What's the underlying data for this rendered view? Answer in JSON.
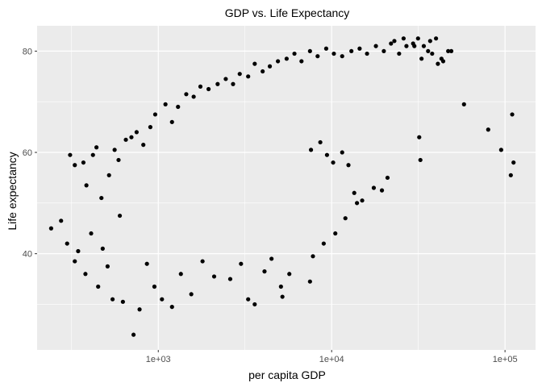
{
  "chart_data": {
    "type": "scatter",
    "title": "GDP vs. Life Expectancy",
    "xlabel": "per capita GDP",
    "ylabel": "Life expectancy",
    "x_scale": "log10",
    "xlim": [
      200,
      150000
    ],
    "ylim": [
      21,
      85
    ],
    "x_ticks": [
      1000,
      10000,
      100000
    ],
    "x_tick_labels": [
      "1e+03",
      "1e+04",
      "1e+05"
    ],
    "y_ticks": [
      40,
      60,
      80
    ],
    "y_tick_labels": [
      "40",
      "60",
      "80"
    ],
    "grid": true,
    "panel_background": "#ebebeb",
    "grid_color": "#ffffff",
    "point_color": "#000000",
    "points": [
      [
        241,
        45.0
      ],
      [
        275,
        46.5
      ],
      [
        298,
        42.0
      ],
      [
        330,
        38.5
      ],
      [
        345,
        40.5
      ],
      [
        380,
        36.0
      ],
      [
        410,
        44.0
      ],
      [
        450,
        33.5
      ],
      [
        478,
        41.0
      ],
      [
        510,
        37.5
      ],
      [
        545,
        31.0
      ],
      [
        600,
        47.5
      ],
      [
        625,
        30.5
      ],
      [
        720,
        24.0
      ],
      [
        780,
        29.0
      ],
      [
        860,
        38.0
      ],
      [
        950,
        33.5
      ],
      [
        1050,
        31.0
      ],
      [
        1200,
        29.5
      ],
      [
        1350,
        36.0
      ],
      [
        1550,
        32.0
      ],
      [
        1800,
        38.5
      ],
      [
        2100,
        35.5
      ],
      [
        2600,
        35.0
      ],
      [
        3000,
        38.0
      ],
      [
        3300,
        31.0
      ],
      [
        3600,
        30.0
      ],
      [
        4100,
        36.5
      ],
      [
        4500,
        39.0
      ],
      [
        5100,
        33.5
      ],
      [
        5700,
        36.0
      ],
      [
        7800,
        39.5
      ],
      [
        9000,
        42.0
      ],
      [
        10500,
        44.0
      ],
      [
        12000,
        47.0
      ],
      [
        7500,
        34.5
      ],
      [
        5200,
        31.5
      ],
      [
        310,
        59.5
      ],
      [
        330,
        57.5
      ],
      [
        370,
        58.0
      ],
      [
        385,
        53.5
      ],
      [
        420,
        59.5
      ],
      [
        440,
        61.0
      ],
      [
        470,
        51.0
      ],
      [
        520,
        55.5
      ],
      [
        560,
        60.5
      ],
      [
        590,
        58.5
      ],
      [
        650,
        62.5
      ],
      [
        700,
        63.0
      ],
      [
        750,
        64.0
      ],
      [
        820,
        61.5
      ],
      [
        900,
        65.0
      ],
      [
        960,
        67.5
      ],
      [
        1100,
        69.5
      ],
      [
        1200,
        66.0
      ],
      [
        1300,
        69.0
      ],
      [
        1450,
        71.5
      ],
      [
        1600,
        71.0
      ],
      [
        1750,
        73.0
      ],
      [
        1950,
        72.5
      ],
      [
        2200,
        73.5
      ],
      [
        2450,
        74.5
      ],
      [
        2700,
        73.5
      ],
      [
        2950,
        75.5
      ],
      [
        3300,
        75.0
      ],
      [
        3600,
        77.5
      ],
      [
        4000,
        76.0
      ],
      [
        4400,
        77.0
      ],
      [
        4900,
        78.0
      ],
      [
        5500,
        78.5
      ],
      [
        6100,
        79.5
      ],
      [
        6700,
        78.0
      ],
      [
        7500,
        80.0
      ],
      [
        8300,
        79.0
      ],
      [
        9300,
        80.5
      ],
      [
        10300,
        79.5
      ],
      [
        11500,
        79.0
      ],
      [
        13000,
        80.0
      ],
      [
        14500,
        80.5
      ],
      [
        16000,
        79.5
      ],
      [
        18000,
        81.0
      ],
      [
        20000,
        80.0
      ],
      [
        22000,
        81.5
      ],
      [
        24500,
        79.5
      ],
      [
        27000,
        81.0
      ],
      [
        29500,
        81.5
      ],
      [
        31500,
        82.5
      ],
      [
        34000,
        81.0
      ],
      [
        37000,
        82.0
      ],
      [
        40000,
        82.5
      ],
      [
        43000,
        78.5
      ],
      [
        47000,
        80.0
      ],
      [
        49000,
        80.0
      ],
      [
        44000,
        78.0
      ],
      [
        36000,
        80.0
      ],
      [
        23000,
        82.0
      ],
      [
        26000,
        82.5
      ],
      [
        30000,
        81.0
      ],
      [
        33000,
        78.5
      ],
      [
        38000,
        79.5
      ],
      [
        41000,
        77.5
      ],
      [
        58000,
        69.5
      ],
      [
        80000,
        64.5
      ],
      [
        95000,
        60.5
      ],
      [
        108000,
        55.5
      ],
      [
        110000,
        67.5
      ],
      [
        112000,
        58.0
      ],
      [
        32000,
        63.0
      ],
      [
        32500,
        58.5
      ],
      [
        21000,
        55.0
      ],
      [
        17500,
        53.0
      ],
      [
        19500,
        52.5
      ],
      [
        15000,
        50.5
      ],
      [
        14000,
        50.0
      ],
      [
        13500,
        52.0
      ],
      [
        12500,
        57.5
      ],
      [
        11500,
        60.0
      ],
      [
        10200,
        58.0
      ],
      [
        9400,
        59.5
      ],
      [
        8600,
        62.0
      ],
      [
        7600,
        60.5
      ]
    ]
  }
}
